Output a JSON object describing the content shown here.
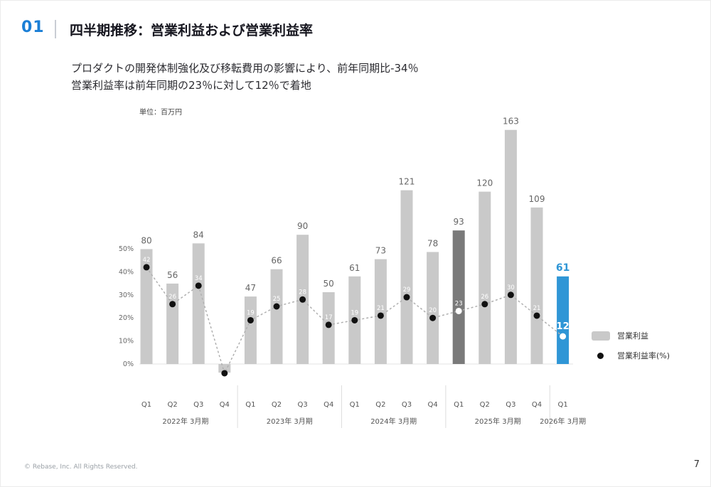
{
  "header": {
    "number": "01",
    "title": "四半期推移：営業利益および営業利益率",
    "subtitle_line1": "プロダクトの開発体制強化及び移転費用の影響により、前年同期比-34％",
    "subtitle_line2": "営業利益率は前年同期の23％に対して12％で着地"
  },
  "chart_data": {
    "type": "bar",
    "title": "四半期推移：営業利益および営業利益率",
    "unit_label": "単位：百万円",
    "y_ticks": [
      "0%",
      "10%",
      "20%",
      "30%",
      "40%",
      "50%"
    ],
    "groups": [
      {
        "label": "2022年 3月期",
        "categories": [
          "Q1",
          "Q2",
          "Q3",
          "Q4"
        ]
      },
      {
        "label": "2023年 3月期",
        "categories": [
          "Q1",
          "Q2",
          "Q3",
          "Q4"
        ]
      },
      {
        "label": "2024年 3月期",
        "categories": [
          "Q1",
          "Q2",
          "Q3",
          "Q4"
        ]
      },
      {
        "label": "2025年 3月期",
        "categories": [
          "Q1",
          "Q2",
          "Q3",
          "Q4"
        ]
      },
      {
        "label": "2026年 3月期",
        "categories": [
          "Q1"
        ]
      }
    ],
    "series": [
      {
        "name": "営業利益",
        "type": "bar",
        "values": [
          80,
          56,
          84,
          -6,
          47,
          66,
          90,
          50,
          61,
          73,
          121,
          78,
          93,
          120,
          163,
          109,
          61
        ],
        "labels": [
          "80",
          "56",
          "84",
          "",
          "47",
          "66",
          "90",
          "50",
          "61",
          "73",
          "121",
          "78",
          "93",
          "120",
          "163",
          "109",
          "61"
        ]
      },
      {
        "name": "営業利益率(%)",
        "type": "line",
        "values": [
          42,
          26,
          34,
          -4,
          19,
          25,
          28,
          17,
          19,
          21,
          29,
          20,
          23,
          26,
          30,
          21,
          12
        ],
        "labels": [
          "42",
          "26",
          "34",
          "",
          "19",
          "25",
          "28",
          "17",
          "19",
          "21",
          "29",
          "20",
          "23",
          "26",
          "30",
          "21",
          "12"
        ]
      }
    ],
    "highlights": {
      "dark_bar_index": 12,
      "blue_bar_index": 16
    },
    "colors": {
      "bar": "#c9c9c9",
      "bar_dark": "#7a7a7a",
      "bar_blue": "#2f96d6",
      "dot": "#111111",
      "dot_highlight": "#ffffff",
      "line": "#b0b0b0"
    },
    "legend_position": "right"
  },
  "legend": {
    "bar_label": "営業利益",
    "dot_label": "営業利益率(%)"
  },
  "footer": {
    "copyright": "© Rebase, Inc. All Rights Reserved.",
    "page_number": "7"
  }
}
